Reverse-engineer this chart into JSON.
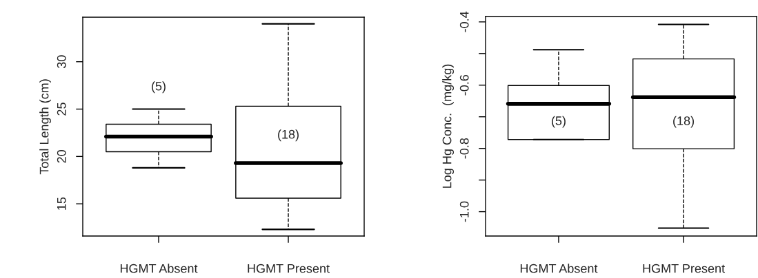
{
  "chart_data": [
    {
      "type": "box",
      "ylabel": "Total Length (cm)",
      "categories": [
        "HGMT Absent",
        "HGMT Present"
      ],
      "line_style": "dashed",
      "boxes": [
        {
          "low": 18.8,
          "q1": 20.5,
          "median": 22.1,
          "q3": 23.4,
          "high": 25.0
        },
        {
          "low": 12.3,
          "q1": 15.6,
          "median": 19.3,
          "q3": 25.3,
          "high": 34.0
        }
      ],
      "ylim": [
        11.6,
        34.7
      ],
      "yticks": [
        15,
        20,
        25,
        30
      ],
      "annotations": [
        "(5)",
        "(18)"
      ]
    },
    {
      "type": "box",
      "ylabel": "Log Hg Conc.  (mg/kg)",
      "categories": [
        "HGMT Absent",
        "HGMT Present"
      ],
      "line_style": "dashed",
      "boxes": [
        {
          "low": -0.772,
          "q1": -0.772,
          "median": -0.659,
          "q3": -0.601,
          "high": -0.488
        },
        {
          "low": -1.052,
          "q1": -0.801,
          "median": -0.638,
          "q3": -0.517,
          "high": -0.408
        }
      ],
      "ylim": [
        -1.077,
        -0.383
      ],
      "yticks": [
        {
          "value": -1.0,
          "label": "-1.0"
        },
        {
          "value": -0.9,
          "label": null
        },
        {
          "value": -0.8,
          "label": "-0.8"
        },
        {
          "value": -0.7,
          "label": null
        },
        {
          "value": -0.6,
          "label": "-0.6"
        },
        {
          "value": -0.5,
          "label": null
        },
        {
          "value": -0.4,
          "label": "-0.4"
        }
      ],
      "annotations": [
        "(5)",
        "(18)"
      ]
    }
  ]
}
